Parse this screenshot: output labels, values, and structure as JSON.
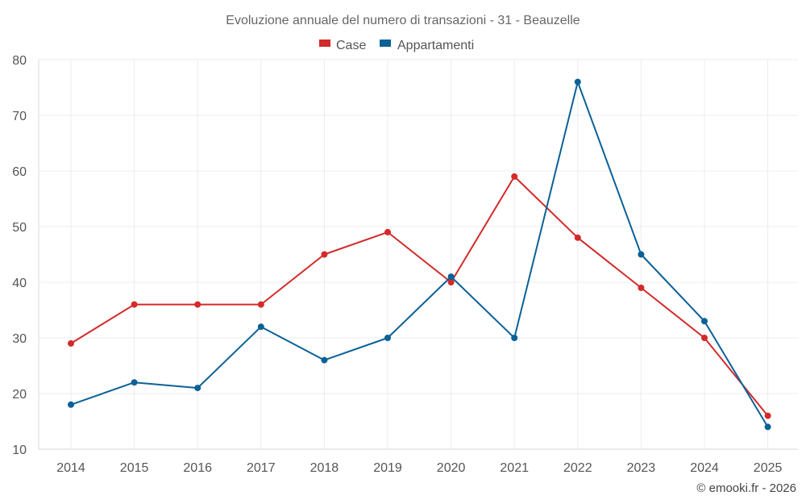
{
  "chart_data": {
    "type": "line",
    "title": "Evoluzione annuale del numero di transazioni - 31 - Beauzelle",
    "categories": [
      "2014",
      "2015",
      "2016",
      "2017",
      "2018",
      "2019",
      "2020",
      "2021",
      "2022",
      "2023",
      "2024",
      "2025"
    ],
    "series": [
      {
        "name": "Case",
        "color": "#d32a2a",
        "values": [
          29,
          36,
          36,
          36,
          45,
          49,
          40,
          59,
          48,
          39,
          30,
          16
        ]
      },
      {
        "name": "Appartamenti",
        "color": "#0b6196",
        "values": [
          18,
          22,
          21,
          32,
          26,
          30,
          41,
          30,
          76,
          45,
          33,
          14
        ]
      }
    ],
    "ylim": [
      10,
      80
    ],
    "yticks": [
      10,
      20,
      30,
      40,
      50,
      60,
      70,
      80
    ],
    "xlabel": "",
    "ylabel": "",
    "grid": true,
    "legend_position": "top-center"
  },
  "credit": "© emooki.fr - 2026"
}
